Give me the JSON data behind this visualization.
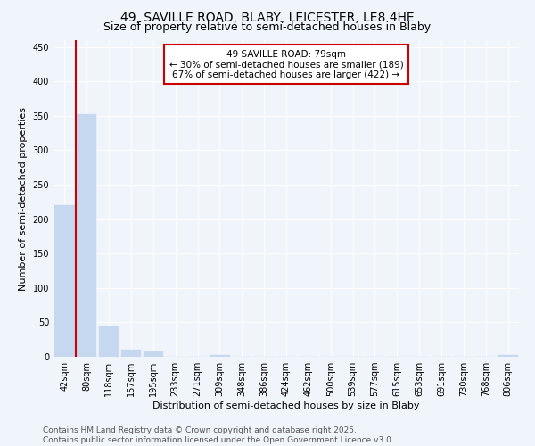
{
  "title1": "49, SAVILLE ROAD, BLABY, LEICESTER, LE8 4HE",
  "title2": "Size of property relative to semi-detached houses in Blaby",
  "xlabel": "Distribution of semi-detached houses by size in Blaby",
  "ylabel": "Number of semi-detached properties",
  "bin_labels": [
    "42sqm",
    "80sqm",
    "118sqm",
    "157sqm",
    "195sqm",
    "233sqm",
    "271sqm",
    "309sqm",
    "348sqm",
    "386sqm",
    "424sqm",
    "462sqm",
    "500sqm",
    "539sqm",
    "577sqm",
    "615sqm",
    "653sqm",
    "691sqm",
    "730sqm",
    "768sqm",
    "806sqm"
  ],
  "bin_values": [
    220,
    352,
    44,
    10,
    8,
    0,
    0,
    2,
    0,
    0,
    0,
    0,
    0,
    0,
    0,
    0,
    0,
    0,
    0,
    0,
    3
  ],
  "bar_color": "#c5d8f0",
  "bar_edge_color": "#c5d8f0",
  "property_line_color": "#cc0000",
  "annotation_title": "49 SAVILLE ROAD: 79sqm",
  "annotation_line1": "← 30% of semi-detached houses are smaller (189)",
  "annotation_line2": "67% of semi-detached houses are larger (422) →",
  "annotation_box_color": "#ffffff",
  "annotation_box_edge": "#cc0000",
  "ylim": [
    0,
    460
  ],
  "yticks": [
    0,
    50,
    100,
    150,
    200,
    250,
    300,
    350,
    400,
    450
  ],
  "footer1": "Contains HM Land Registry data © Crown copyright and database right 2025.",
  "footer2": "Contains public sector information licensed under the Open Government Licence v3.0.",
  "bg_color": "#f0f4fb",
  "plot_bg_color": "#f0f4fb",
  "grid_color": "#ffffff",
  "title_fontsize": 10,
  "subtitle_fontsize": 9,
  "axis_label_fontsize": 8,
  "tick_fontsize": 7,
  "footer_fontsize": 6.5,
  "annotation_fontsize": 7.5
}
